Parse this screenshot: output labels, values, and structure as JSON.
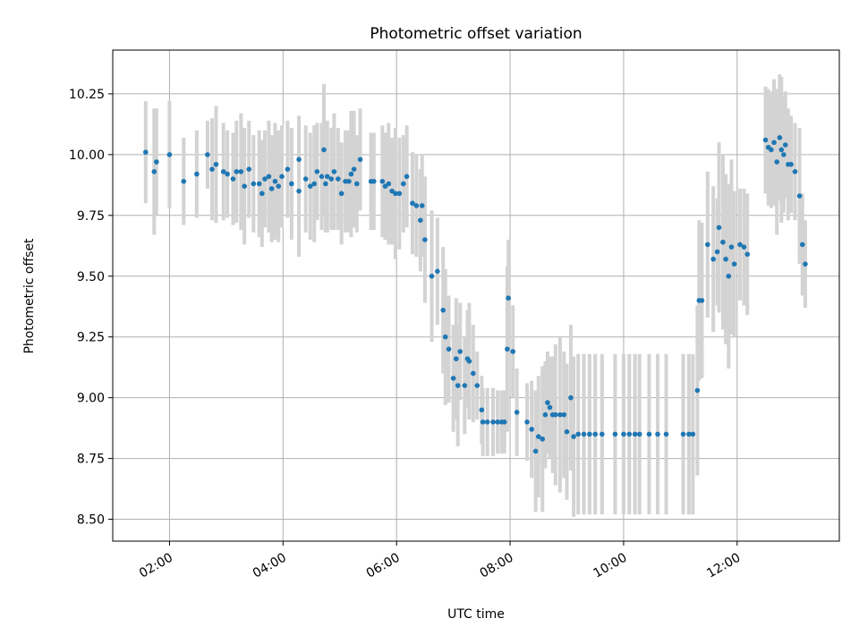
{
  "chart_data": {
    "type": "scatter",
    "title": "Photometric offset variation",
    "xlabel": "UTC time",
    "ylabel": "Photometric offset",
    "x_tick_labels": [
      "02:00",
      "04:00",
      "06:00",
      "08:00",
      "10:00",
      "12:00"
    ],
    "x_tick_hours": [
      2,
      4,
      6,
      8,
      10,
      12
    ],
    "y_tick_labels": [
      "8.50",
      "8.75",
      "9.00",
      "9.25",
      "9.50",
      "9.75",
      "10.00",
      "10.25"
    ],
    "y_tick_values": [
      8.5,
      8.75,
      9.0,
      9.25,
      9.5,
      9.75,
      10.0,
      10.25
    ],
    "xlim_hours": [
      1.0,
      13.8
    ],
    "ylim": [
      8.41,
      10.43
    ],
    "grid": true,
    "marker_color": "#1f77b4",
    "errorbar_color": "#d3d3d3",
    "series": [
      {
        "values": [
          [
            1.58,
            10.01,
            0.21
          ],
          [
            1.73,
            9.93,
            0.26
          ],
          [
            1.77,
            9.97,
            0.22
          ],
          [
            2.0,
            10.0,
            0.22
          ],
          [
            2.25,
            9.89,
            0.18
          ],
          [
            2.48,
            9.92,
            0.18
          ],
          [
            2.67,
            10.0,
            0.14
          ],
          [
            2.75,
            9.94,
            0.21
          ],
          [
            2.82,
            9.96,
            0.24
          ],
          [
            2.95,
            9.93,
            0.2
          ],
          [
            3.02,
            9.92,
            0.18
          ],
          [
            3.12,
            9.9,
            0.19
          ],
          [
            3.18,
            9.93,
            0.21
          ],
          [
            3.26,
            9.93,
            0.24
          ],
          [
            3.32,
            9.87,
            0.24
          ],
          [
            3.4,
            9.94,
            0.2
          ],
          [
            3.48,
            9.88,
            0.2
          ],
          [
            3.58,
            9.88,
            0.22
          ],
          [
            3.63,
            9.84,
            0.22
          ],
          [
            3.68,
            9.9,
            0.2
          ],
          [
            3.75,
            9.91,
            0.23
          ],
          [
            3.8,
            9.86,
            0.22
          ],
          [
            3.86,
            9.89,
            0.24
          ],
          [
            3.92,
            9.87,
            0.23
          ],
          [
            3.98,
            9.91,
            0.21
          ],
          [
            4.08,
            9.94,
            0.2
          ],
          [
            4.15,
            9.88,
            0.23
          ],
          [
            4.28,
            9.85,
            0.27
          ],
          [
            4.28,
            9.98,
            0.18
          ],
          [
            4.4,
            9.9,
            0.22
          ],
          [
            4.48,
            9.87,
            0.22
          ],
          [
            4.55,
            9.88,
            0.24
          ],
          [
            4.6,
            9.93,
            0.2
          ],
          [
            4.68,
            9.91,
            0.22
          ],
          [
            4.72,
            10.02,
            0.27
          ],
          [
            4.75,
            9.88,
            0.2
          ],
          [
            4.78,
            9.91,
            0.23
          ],
          [
            4.85,
            9.9,
            0.21
          ],
          [
            4.9,
            9.93,
            0.24
          ],
          [
            4.97,
            9.9,
            0.21
          ],
          [
            5.03,
            9.84,
            0.21
          ],
          [
            5.1,
            9.89,
            0.21
          ],
          [
            5.16,
            9.89,
            0.21
          ],
          [
            5.2,
            9.92,
            0.26
          ],
          [
            5.25,
            9.94,
            0.24
          ],
          [
            5.3,
            9.88,
            0.2
          ],
          [
            5.36,
            9.98,
            0.21
          ],
          [
            5.55,
            9.89,
            0.2
          ],
          [
            5.6,
            9.89,
            0.2
          ],
          [
            5.75,
            9.89,
            0.23
          ],
          [
            5.8,
            9.87,
            0.22
          ],
          [
            5.86,
            9.88,
            0.25
          ],
          [
            5.92,
            9.85,
            0.22
          ],
          [
            5.98,
            9.84,
            0.27
          ],
          [
            6.05,
            9.84,
            0.23
          ],
          [
            6.12,
            9.88,
            0.2
          ],
          [
            6.18,
            9.91,
            0.21
          ],
          [
            6.28,
            9.8,
            0.21
          ],
          [
            6.35,
            9.79,
            0.21
          ],
          [
            6.45,
            9.79,
            0.21
          ],
          [
            6.42,
            9.73,
            0.21
          ],
          [
            6.5,
            9.65,
            0.26
          ],
          [
            6.62,
            9.5,
            0.27
          ],
          [
            6.72,
            9.52,
            0.22
          ],
          [
            6.82,
            9.36,
            0.26
          ],
          [
            6.86,
            9.25,
            0.28
          ],
          [
            6.92,
            9.2,
            0.22
          ],
          [
            7.0,
            9.08,
            0.22
          ],
          [
            7.05,
            9.16,
            0.25
          ],
          [
            7.08,
            9.05,
            0.25
          ],
          [
            7.12,
            9.19,
            0.2
          ],
          [
            7.2,
            9.05,
            0.2
          ],
          [
            7.25,
            9.16,
            0.2
          ],
          [
            7.28,
            9.15,
            0.24
          ],
          [
            7.35,
            9.1,
            0.2
          ],
          [
            7.42,
            9.05,
            0.14
          ],
          [
            7.5,
            8.95,
            0.14
          ],
          [
            7.52,
            8.9,
            0.14
          ],
          [
            7.6,
            8.9,
            0.14
          ],
          [
            7.7,
            8.9,
            0.14
          ],
          [
            7.78,
            8.9,
            0.13
          ],
          [
            7.85,
            8.9,
            0.13
          ],
          [
            7.9,
            8.9,
            0.13
          ],
          [
            7.95,
            9.2,
            0.34
          ],
          [
            7.97,
            9.41,
            0.24
          ],
          [
            8.05,
            9.19,
            0.19
          ],
          [
            8.12,
            8.94,
            0.18
          ],
          [
            8.3,
            8.9,
            0.16
          ],
          [
            8.38,
            8.87,
            0.2
          ],
          [
            8.45,
            8.78,
            0.25
          ],
          [
            8.5,
            8.84,
            0.25
          ],
          [
            8.57,
            8.83,
            0.3
          ],
          [
            8.62,
            8.93,
            0.22
          ],
          [
            8.66,
            8.98,
            0.21
          ],
          [
            8.7,
            8.96,
            0.21
          ],
          [
            8.75,
            8.93,
            0.24
          ],
          [
            8.8,
            8.93,
            0.29
          ],
          [
            8.88,
            8.93,
            0.32
          ],
          [
            8.95,
            8.93,
            0.26
          ],
          [
            9.0,
            8.86,
            0.28
          ],
          [
            9.07,
            9.0,
            0.3
          ],
          [
            9.12,
            8.84,
            0.33
          ],
          [
            9.2,
            8.85,
            0.33
          ],
          [
            9.3,
            8.85,
            0.33
          ],
          [
            9.4,
            8.85,
            0.33
          ],
          [
            9.5,
            8.85,
            0.33
          ],
          [
            9.62,
            8.85,
            0.33
          ],
          [
            9.85,
            8.85,
            0.33
          ],
          [
            10.0,
            8.85,
            0.33
          ],
          [
            10.1,
            8.85,
            0.33
          ],
          [
            10.2,
            8.85,
            0.33
          ],
          [
            10.28,
            8.85,
            0.33
          ],
          [
            10.45,
            8.85,
            0.33
          ],
          [
            10.6,
            8.85,
            0.33
          ],
          [
            10.75,
            8.85,
            0.33
          ],
          [
            11.05,
            8.85,
            0.33
          ],
          [
            11.15,
            8.85,
            0.33
          ],
          [
            11.22,
            8.85,
            0.33
          ],
          [
            11.3,
            9.03,
            0.35
          ],
          [
            11.33,
            9.4,
            0.33
          ],
          [
            11.38,
            9.4,
            0.32
          ],
          [
            11.48,
            9.63,
            0.3
          ],
          [
            11.58,
            9.57,
            0.3
          ],
          [
            11.65,
            9.6,
            0.22
          ],
          [
            11.68,
            9.7,
            0.35
          ],
          [
            11.75,
            9.64,
            0.36
          ],
          [
            11.8,
            9.57,
            0.35
          ],
          [
            11.85,
            9.5,
            0.38
          ],
          [
            11.9,
            9.62,
            0.36
          ],
          [
            11.95,
            9.55,
            0.3
          ],
          [
            12.05,
            9.63,
            0.23
          ],
          [
            12.12,
            9.62,
            0.24
          ],
          [
            12.18,
            9.59,
            0.25
          ],
          [
            12.5,
            10.06,
            0.22
          ],
          [
            12.55,
            10.03,
            0.24
          ],
          [
            12.6,
            10.02,
            0.24
          ],
          [
            12.65,
            10.05,
            0.26
          ],
          [
            12.7,
            9.97,
            0.3
          ],
          [
            12.75,
            10.07,
            0.26
          ],
          [
            12.78,
            10.02,
            0.3
          ],
          [
            12.82,
            10.0,
            0.24
          ],
          [
            12.85,
            10.04,
            0.22
          ],
          [
            12.9,
            9.96,
            0.23
          ],
          [
            12.95,
            9.96,
            0.2
          ],
          [
            13.02,
            9.93,
            0.2
          ],
          [
            13.1,
            9.83,
            0.28
          ],
          [
            13.15,
            9.63,
            0.21
          ],
          [
            13.2,
            9.55,
            0.18
          ]
        ]
      }
    ]
  }
}
